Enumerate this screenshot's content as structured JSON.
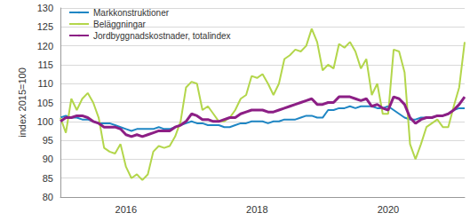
{
  "chart_data": {
    "type": "line",
    "y_label": "index 2015=100",
    "categories": [
      null,
      null,
      null,
      null,
      null,
      null,
      null,
      null,
      null,
      null,
      null,
      null,
      "2016",
      null,
      null,
      null,
      null,
      null,
      null,
      null,
      null,
      null,
      null,
      null,
      null,
      null,
      null,
      null,
      null,
      null,
      null,
      null,
      null,
      null,
      null,
      null,
      "2018",
      null,
      null,
      null,
      null,
      null,
      null,
      null,
      null,
      null,
      null,
      null,
      null,
      null,
      null,
      null,
      null,
      null,
      null,
      null,
      null,
      null,
      null,
      null,
      "2020",
      null,
      null,
      null,
      null,
      null,
      null,
      null,
      null,
      null,
      null,
      null,
      null,
      null,
      null
    ],
    "series": [
      {
        "name": "Markkonstruktioner",
        "color": "#1f86c4",
        "values": [
          101,
          101.5,
          101,
          101,
          100.5,
          100.5,
          100,
          99.5,
          99.5,
          99.5,
          99,
          98.5,
          98,
          97.5,
          98,
          98,
          98,
          98,
          98.5,
          98,
          98,
          98.5,
          99,
          99.5,
          100,
          99.5,
          99.5,
          99,
          99,
          99,
          98.5,
          98.5,
          99,
          99.5,
          99.5,
          100,
          100,
          100,
          99.5,
          100,
          100,
          100.5,
          100.5,
          100.5,
          101,
          101.5,
          101.5,
          101,
          101,
          103,
          103,
          103.5,
          103.5,
          104,
          103.5,
          104,
          104,
          104,
          103.5,
          103.5,
          104,
          103,
          102,
          101,
          100.5,
          100.5,
          101,
          101,
          101,
          101.5,
          101.5,
          102,
          103,
          103.5,
          103.5
        ]
      },
      {
        "name": "Beläggningar",
        "color": "#b3d64b",
        "values": [
          101,
          97,
          106,
          103,
          106,
          107.5,
          105,
          101,
          93,
          92,
          91.5,
          94,
          88,
          85,
          86,
          84.5,
          86,
          92,
          93.5,
          93,
          93.5,
          96,
          100,
          109,
          110.5,
          110,
          103,
          104,
          102,
          100,
          100,
          101,
          103,
          106,
          107,
          112,
          111.5,
          112.5,
          110,
          107,
          110,
          116.5,
          117.5,
          119,
          118.5,
          120,
          124.5,
          121,
          113.5,
          115,
          114,
          120.5,
          119.5,
          121,
          118.5,
          114,
          116.5,
          107,
          110,
          102,
          102,
          119,
          118.5,
          113,
          94,
          90,
          94,
          98.5,
          99.5,
          100.5,
          98.5,
          98.5,
          104,
          109,
          121
        ]
      },
      {
        "name": "Jordbyggnadskostnader, totalindex",
        "color": "#8c1f85",
        "values": [
          100,
          101,
          101,
          101.5,
          101.5,
          101,
          100,
          99.5,
          98.5,
          98.5,
          98.5,
          98,
          96.5,
          96,
          96.5,
          96,
          96.5,
          97,
          97.5,
          97.5,
          97.5,
          98.5,
          99,
          100,
          102,
          101.5,
          100.5,
          100.5,
          100,
          100,
          100.5,
          101,
          101,
          102,
          102.5,
          103,
          103,
          103,
          102.5,
          102.5,
          103,
          103.5,
          104,
          104.5,
          105,
          105.5,
          106,
          104.5,
          104.5,
          105,
          105,
          106.5,
          106.5,
          106.5,
          106,
          105.5,
          106,
          104,
          104.5,
          103.5,
          103,
          106.5,
          106,
          104.5,
          101,
          99.5,
          100.5,
          101,
          101,
          101.5,
          101.5,
          102,
          103,
          104.5,
          106.5
        ]
      }
    ],
    "ylim": [
      80,
      130
    ],
    "yticks": [
      80,
      85,
      90,
      95,
      100,
      105,
      110,
      115,
      120,
      125,
      130
    ],
    "grid": true,
    "legend": "top-left"
  }
}
